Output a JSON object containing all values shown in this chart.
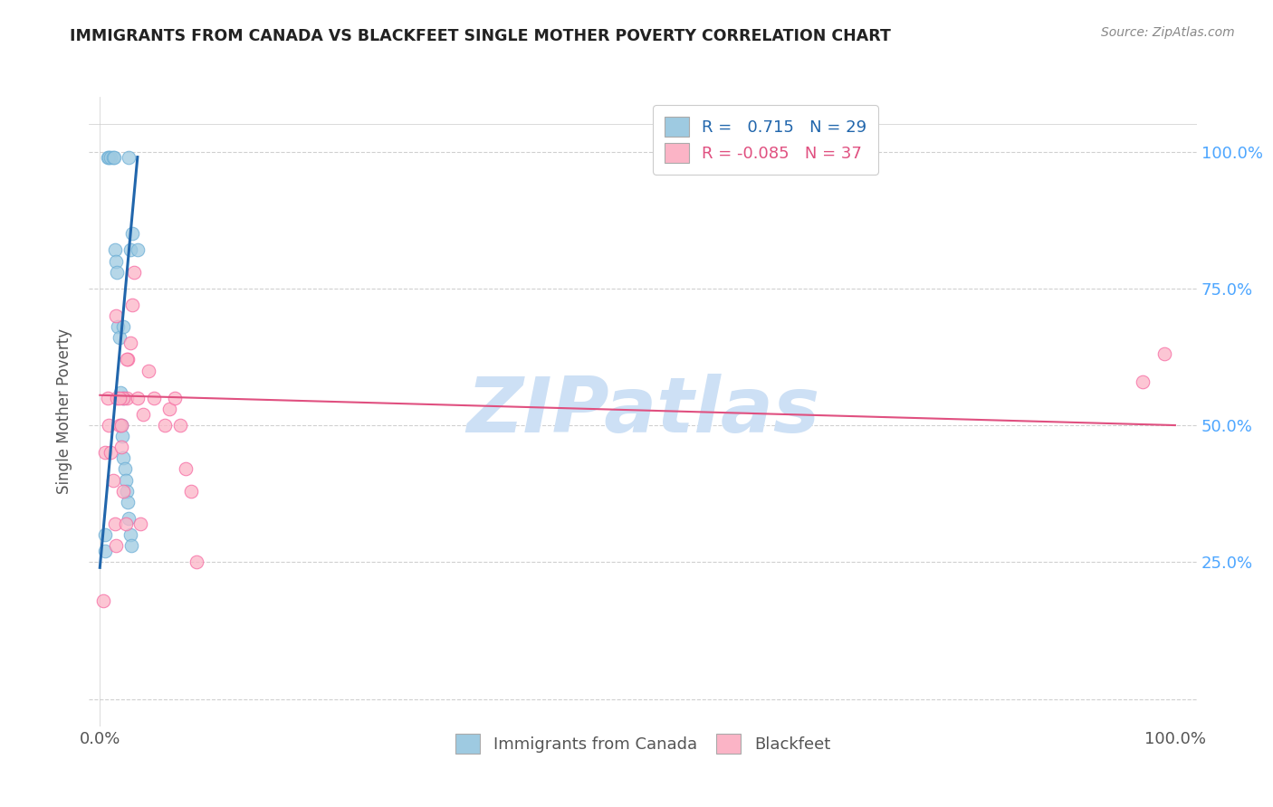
{
  "title": "IMMIGRANTS FROM CANADA VS BLACKFEET SINGLE MOTHER POVERTY CORRELATION CHART",
  "source": "Source: ZipAtlas.com",
  "ylabel": "Single Mother Poverty",
  "watermark": "ZIPatlas",
  "legend_blue_R": "R =   0.715",
  "legend_blue_N": "N = 29",
  "legend_pink_R": "R = -0.085",
  "legend_pink_N": "N = 37",
  "blue_scatter_x": [
    0.5,
    0.5,
    0.7,
    0.8,
    1.0,
    1.2,
    1.3,
    1.4,
    1.5,
    1.6,
    1.7,
    1.8,
    1.9,
    2.0,
    2.1,
    2.2,
    2.3,
    2.4,
    2.5,
    2.6,
    2.7,
    2.8,
    2.9,
    2.2,
    2.8,
    2.2,
    3.0,
    3.5,
    2.7
  ],
  "blue_scatter_y": [
    27.0,
    30.0,
    99.0,
    99.0,
    99.0,
    99.0,
    99.0,
    82.0,
    80.0,
    78.0,
    68.0,
    66.0,
    56.0,
    50.0,
    48.0,
    44.0,
    42.0,
    40.0,
    38.0,
    36.0,
    33.0,
    30.0,
    28.0,
    68.0,
    82.0,
    55.0,
    85.0,
    82.0,
    99.0
  ],
  "pink_scatter_x": [
    0.3,
    0.5,
    0.7,
    0.8,
    1.0,
    1.2,
    1.4,
    1.5,
    1.6,
    1.8,
    2.0,
    2.2,
    2.4,
    2.5,
    2.6,
    2.8,
    3.0,
    3.2,
    3.5,
    4.0,
    4.5,
    5.0,
    6.0,
    6.5,
    7.0,
    7.5,
    8.0,
    8.5,
    9.0,
    1.5,
    2.5,
    3.8,
    2.2,
    2.0,
    1.8,
    97.0,
    99.0
  ],
  "pink_scatter_y": [
    18.0,
    45.0,
    55.0,
    50.0,
    45.0,
    40.0,
    32.0,
    28.0,
    55.0,
    50.0,
    46.0,
    38.0,
    32.0,
    55.0,
    62.0,
    65.0,
    72.0,
    78.0,
    55.0,
    52.0,
    60.0,
    55.0,
    50.0,
    53.0,
    55.0,
    50.0,
    42.0,
    38.0,
    25.0,
    70.0,
    62.0,
    32.0,
    55.0,
    50.0,
    55.0,
    58.0,
    63.0
  ],
  "blue_line_x": [
    0.0,
    3.5
  ],
  "blue_line_y": [
    24.0,
    99.0
  ],
  "pink_line_x": [
    0.0,
    100.0
  ],
  "pink_line_y": [
    55.5,
    50.0
  ],
  "blue_color": "#9ecae1",
  "pink_color": "#fbb4c6",
  "blue_edge_color": "#6baed6",
  "pink_edge_color": "#f768a1",
  "blue_line_color": "#2166ac",
  "pink_line_color": "#e05080",
  "background_color": "#ffffff",
  "grid_color": "#d0d0d0",
  "title_color": "#222222",
  "right_axis_color": "#4da6ff",
  "watermark_color": "#cde0f5",
  "figsize": [
    14.06,
    8.92
  ],
  "dpi": 100,
  "xlim": [
    -1.0,
    102.0
  ],
  "ylim": [
    -5.0,
    110.0
  ],
  "xticks": [
    0.0,
    100.0
  ],
  "xtick_labels": [
    "0.0%",
    "100.0%"
  ],
  "yticks": [
    0.0,
    25.0,
    50.0,
    75.0,
    100.0
  ],
  "ytick_labels_right": [
    "",
    "25.0%",
    "50.0%",
    "75.0%",
    "100.0%"
  ]
}
